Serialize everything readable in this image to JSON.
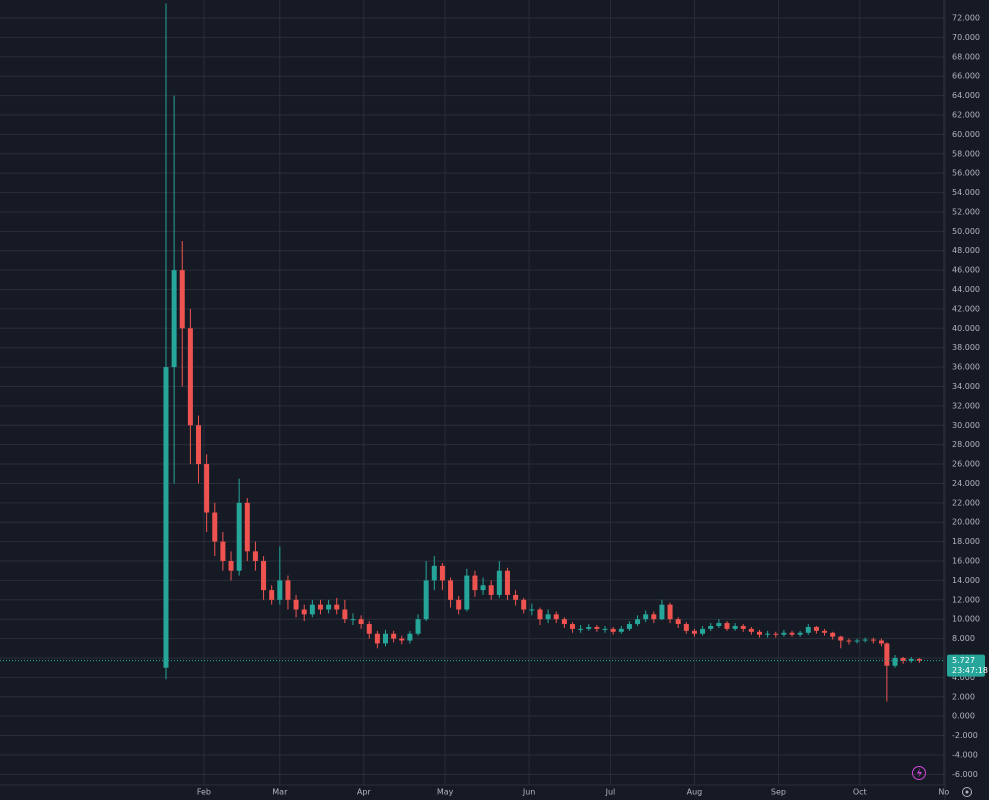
{
  "chart_data": {
    "type": "candlestick",
    "up_color": "#26a69a",
    "down_color": "#ef5350",
    "grid": true,
    "x": [
      0,
      3,
      6,
      9,
      12,
      15,
      18,
      21,
      24,
      27,
      30,
      33,
      36,
      39,
      42,
      45,
      48,
      51,
      54,
      57,
      60,
      63,
      66,
      69,
      72,
      75,
      78,
      81,
      84,
      87,
      90,
      93,
      96,
      99,
      102,
      105,
      108,
      111,
      114,
      117,
      120,
      123,
      126,
      129,
      132,
      135,
      138,
      141,
      144,
      147,
      150,
      153,
      156,
      159,
      162,
      165,
      168,
      171,
      174,
      177,
      180,
      183,
      186,
      189,
      192,
      195,
      198,
      201,
      204,
      207,
      210,
      213,
      216,
      219,
      222,
      225,
      228,
      231,
      234,
      237,
      240,
      243,
      246,
      249,
      252,
      255,
      258,
      261,
      264,
      266,
      269,
      272,
      275,
      278
    ],
    "open": [
      5,
      36,
      46,
      40,
      30,
      26,
      21,
      18,
      16,
      15,
      22,
      17,
      16,
      13,
      12,
      14,
      12,
      11,
      10.5,
      11.5,
      11,
      11.5,
      11,
      10,
      10,
      9.5,
      8.5,
      7.5,
      8.5,
      8,
      7.8,
      8.5,
      10,
      14,
      15.5,
      14,
      12,
      11,
      14.5,
      13,
      13.5,
      12.5,
      15,
      12.5,
      12,
      11,
      11,
      10,
      10.5,
      10,
      9.5,
      9,
      9,
      9.2,
      9,
      9,
      8.7,
      9,
      9.5,
      10,
      10.5,
      10,
      11.5,
      10,
      9.5,
      8.8,
      8.5,
      9,
      9.3,
      9.6,
      9,
      9.3,
      9,
      8.7,
      8.4,
      8.5,
      8.4,
      8.6,
      8.4,
      8.6,
      9.2,
      8.8,
      8.6,
      8.2,
      7.8,
      7.7,
      7.8,
      7.9,
      7.8,
      7.5,
      5.2,
      6,
      5.7,
      5.9
    ],
    "high": [
      73.5,
      64,
      49,
      42,
      31,
      27,
      22,
      19,
      17,
      24.5,
      22.5,
      18,
      16.5,
      13.5,
      17.5,
      14.5,
      12.5,
      11.5,
      12,
      12,
      12,
      12.2,
      12,
      10.6,
      10.4,
      9.8,
      8.8,
      8.9,
      8.8,
      8.3,
      8.8,
      10.5,
      16,
      16.5,
      15.8,
      14.3,
      12.4,
      15.2,
      15,
      14.3,
      14,
      16,
      15.3,
      13,
      12.2,
      11.6,
      11.2,
      11,
      10.8,
      10.2,
      9.7,
      9.4,
      9.5,
      9.4,
      9.3,
      9.2,
      9.3,
      9.8,
      10.4,
      10.9,
      10.8,
      12,
      11.7,
      10.2,
      9.7,
      9,
      9.3,
      9.6,
      10,
      9.8,
      9.6,
      9.5,
      9.2,
      8.9,
      8.8,
      8.7,
      8.9,
      8.8,
      8.8,
      9.5,
      9.3,
      9,
      8.7,
      8.3,
      8,
      8,
      8.1,
      8.1,
      8,
      7.6,
      6.3,
      6.1,
      6.1,
      6
    ],
    "low": [
      3.8,
      24,
      34,
      26,
      24,
      19,
      16.5,
      15,
      14,
      14.5,
      16,
      15,
      12,
      11.5,
      11.5,
      11,
      10.2,
      9.8,
      10.2,
      10.5,
      10.6,
      10.5,
      9.6,
      9.4,
      9,
      8,
      7,
      7.2,
      7.6,
      7.4,
      7.5,
      8.3,
      9.8,
      13,
      13,
      11.2,
      10.5,
      10.8,
      12.3,
      12.5,
      12,
      12.2,
      12,
      11.4,
      10.6,
      10.4,
      9.4,
      9.6,
      9.6,
      9.1,
      8.6,
      8.6,
      8.8,
      8.7,
      8.6,
      8.4,
      8.5,
      8.8,
      9.3,
      9.7,
      9.6,
      9.9,
      9.6,
      9.1,
      8.5,
      8.2,
      8.3,
      8.8,
      9.1,
      8.8,
      8.8,
      8.7,
      8.4,
      8.1,
      8.1,
      8.1,
      8.2,
      8.2,
      8.2,
      8.4,
      8.5,
      8.3,
      7.9,
      7,
      7.4,
      7.5,
      7.6,
      7.5,
      7.2,
      1.5,
      5,
      5.4,
      5.5,
      5.5
    ],
    "close": [
      36,
      46,
      40,
      30,
      26,
      21,
      18,
      16,
      15,
      22,
      17,
      16,
      13,
      12,
      14,
      12,
      11,
      10.5,
      11.5,
      11,
      11.5,
      11,
      10,
      10,
      9.5,
      8.5,
      7.5,
      8.5,
      8,
      7.8,
      8.5,
      10,
      14,
      15.5,
      14,
      12,
      11,
      14.5,
      13,
      13.5,
      12.5,
      15,
      12.5,
      12,
      11,
      11,
      10,
      10.5,
      10,
      9.5,
      9,
      9,
      9.2,
      9,
      9,
      8.7,
      9,
      9.5,
      10,
      10.5,
      10,
      11.5,
      10,
      9.5,
      8.8,
      8.5,
      9,
      9.3,
      9.6,
      9,
      9.3,
      9,
      8.7,
      8.4,
      8.5,
      8.4,
      8.6,
      8.4,
      8.6,
      9.2,
      8.8,
      8.6,
      8.2,
      7.8,
      7.7,
      7.8,
      7.9,
      7.8,
      7.5,
      5.2,
      6,
      5.7,
      5.9,
      5.727
    ],
    "xlim": [
      -61.25,
      287.45
    ],
    "xticks": [
      {
        "value": 14,
        "label": "Feb"
      },
      {
        "value": 42,
        "label": "Mar"
      },
      {
        "value": 73,
        "label": "Apr"
      },
      {
        "value": 103,
        "label": "May"
      },
      {
        "value": 134,
        "label": "Jun"
      },
      {
        "value": 164,
        "label": "Jul"
      },
      {
        "value": 195,
        "label": "Aug"
      },
      {
        "value": 226,
        "label": "Sep"
      },
      {
        "value": 256,
        "label": "Oct"
      },
      {
        "value": 287,
        "label": "No"
      }
    ],
    "ylim": [
      -7.1,
      73.86
    ],
    "yticks": [
      {
        "value": -6,
        "label": "-6.000"
      },
      {
        "value": -4,
        "label": "-4.000"
      },
      {
        "value": -2,
        "label": "-2.000"
      },
      {
        "value": 0,
        "label": "0.000"
      },
      {
        "value": 2,
        "label": "2.000"
      },
      {
        "value": 4,
        "label": "4.000"
      },
      {
        "value": 6,
        "label": "6.000"
      },
      {
        "value": 8,
        "label": "8.000"
      },
      {
        "value": 10,
        "label": "10.000"
      },
      {
        "value": 12,
        "label": "12.000"
      },
      {
        "value": 14,
        "label": "14.000"
      },
      {
        "value": 16,
        "label": "16.000"
      },
      {
        "value": 18,
        "label": "18.000"
      },
      {
        "value": 20,
        "label": "20.000"
      },
      {
        "value": 22,
        "label": "22.000"
      },
      {
        "value": 24,
        "label": "24.000"
      },
      {
        "value": 26,
        "label": "26.000"
      },
      {
        "value": 28,
        "label": "28.000"
      },
      {
        "value": 30,
        "label": "30.000"
      },
      {
        "value": 32,
        "label": "32.000"
      },
      {
        "value": 34,
        "label": "34.000"
      },
      {
        "value": 36,
        "label": "36.000"
      },
      {
        "value": 38,
        "label": "38.000"
      },
      {
        "value": 40,
        "label": "40.000"
      },
      {
        "value": 42,
        "label": "42.000"
      },
      {
        "value": 44,
        "label": "44.000"
      },
      {
        "value": 46,
        "label": "46.000"
      },
      {
        "value": 48,
        "label": "48.000"
      },
      {
        "value": 50,
        "label": "50.000"
      },
      {
        "value": 52,
        "label": "52.000"
      },
      {
        "value": 54,
        "label": "54.000"
      },
      {
        "value": 56,
        "label": "56.000"
      },
      {
        "value": 58,
        "label": "58.000"
      },
      {
        "value": 60,
        "label": "60.000"
      },
      {
        "value": 62,
        "label": "62.000"
      },
      {
        "value": 64,
        "label": "64.000"
      },
      {
        "value": 66,
        "label": "66.000"
      },
      {
        "value": 68,
        "label": "68.000"
      },
      {
        "value": 70,
        "label": "70.000"
      },
      {
        "value": 72,
        "label": "72.000"
      }
    ],
    "last_price": {
      "value": 5.727,
      "label": "5.727"
    },
    "countdown": "23:47:18"
  }
}
